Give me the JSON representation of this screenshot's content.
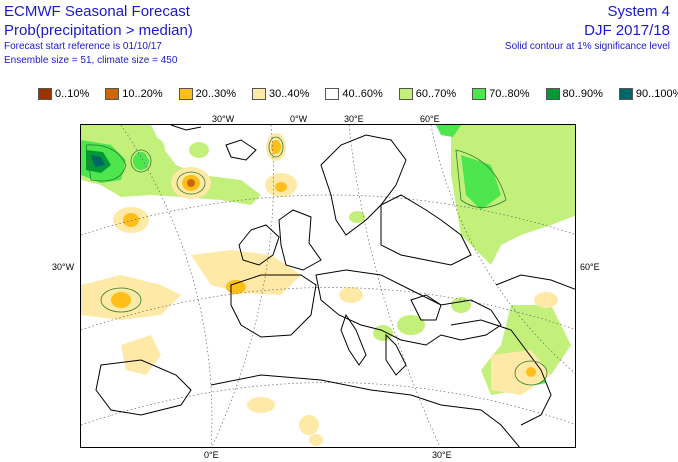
{
  "header": {
    "title": "ECMWF Seasonal Forecast",
    "subtitle": "Prob(precipitation > median)",
    "start_ref": "Forecast start reference is 01/10/17",
    "ensemble": "Ensemble size = 51, climate size = 450",
    "system": "System 4",
    "season": "DJF 2017/18",
    "significance": "Solid contour at 1% significance level"
  },
  "legend": [
    {
      "label": "0..10%",
      "color": "#993300"
    },
    {
      "label": "10..20%",
      "color": "#cc6600"
    },
    {
      "label": "20..30%",
      "color": "#ffbf1a"
    },
    {
      "label": "30..40%",
      "color": "#ffe9a6"
    },
    {
      "label": "40..60%",
      "color": "#ffffff"
    },
    {
      "label": "60..70%",
      "color": "#c2f07a"
    },
    {
      "label": "70..80%",
      "color": "#4de64d"
    },
    {
      "label": "80..90%",
      "color": "#009933"
    },
    {
      "label": "90..100%",
      "color": "#006666"
    }
  ],
  "axes": {
    "top": [
      "30°W",
      "0°W",
      "30°E",
      "60°E"
    ],
    "left": "30°W",
    "right": "60°E",
    "bottom": [
      "0°E",
      "30°E"
    ]
  }
}
